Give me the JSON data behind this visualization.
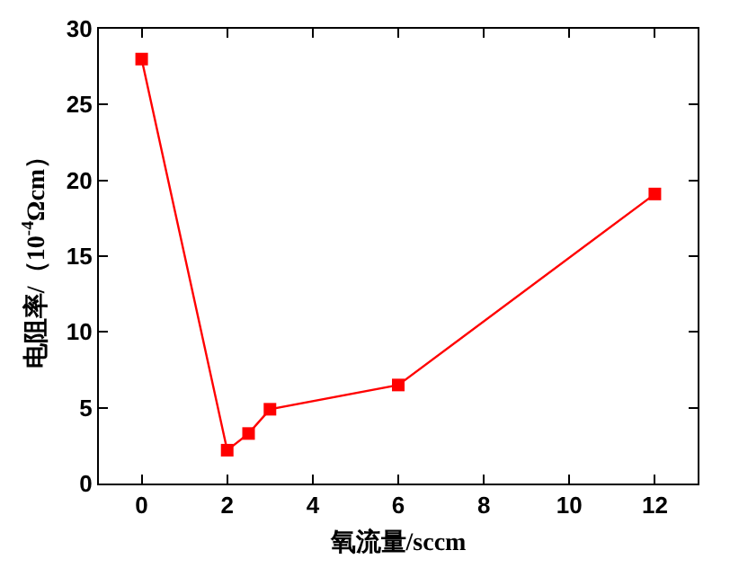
{
  "chart_data": {
    "type": "line",
    "xlabel": "氧流量/sccm",
    "ylabel": "电阻率/（10$^{-4}$Ωcm）",
    "x": [
      0,
      2,
      2.5,
      3,
      6,
      12
    ],
    "series": [
      {
        "color": "#ff0000",
        "values": [
          28,
          2.2,
          3.3,
          4.9,
          6.5,
          19.1
        ]
      }
    ],
    "xlim": [
      -1,
      13
    ],
    "xticks": [
      0,
      2,
      4,
      6,
      8,
      10,
      12
    ],
    "ylim": [
      0,
      30
    ],
    "yticks": [
      0,
      5,
      10,
      15,
      20,
      25,
      30
    ],
    "grid": false,
    "legend": false,
    "marker": "square",
    "line_style": "solid"
  }
}
